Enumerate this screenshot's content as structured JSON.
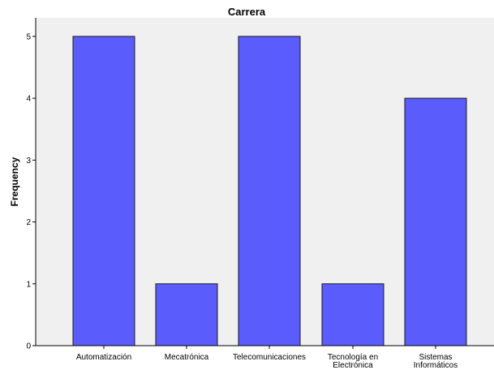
{
  "chart_data": {
    "type": "bar",
    "title": "Carrera",
    "xlabel": "",
    "ylabel": "Frequency",
    "categories": [
      [
        "Automatización"
      ],
      [
        "Mecatrónica"
      ],
      [
        "Telecomunicaciones"
      ],
      [
        "Tecnología en",
        "Electrónica"
      ],
      [
        "Sistemas",
        "Informáticos"
      ]
    ],
    "values": [
      5,
      1,
      5,
      1,
      4
    ],
    "ylim": [
      0,
      5.3
    ],
    "yticks": [
      0,
      1,
      2,
      3,
      4,
      5
    ],
    "grid": false,
    "colors": {
      "bar_fill": "#5a5cfb",
      "bar_stroke": "#1a1a1a",
      "plot_background": "#f0f0f0",
      "axis": "#000000"
    }
  }
}
